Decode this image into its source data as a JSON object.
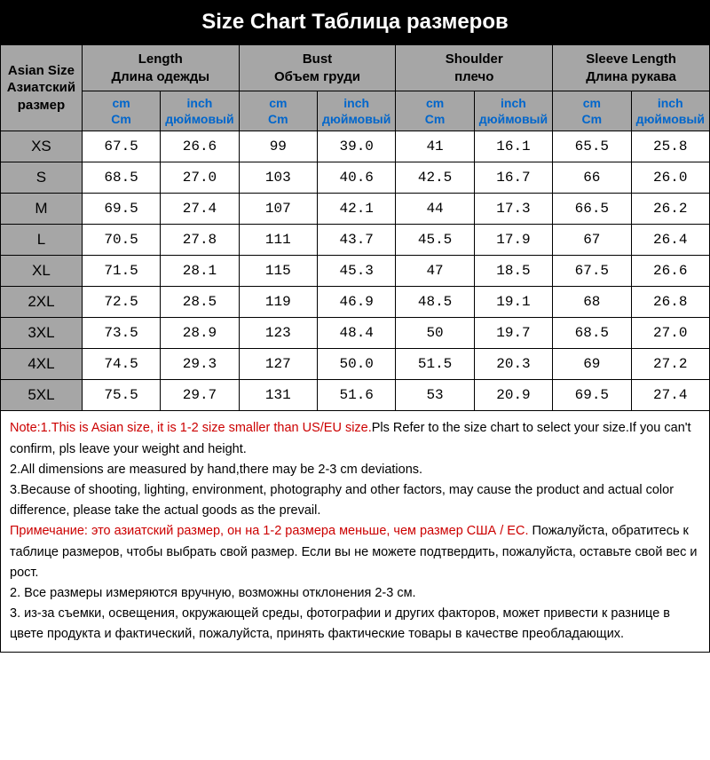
{
  "title": "Size Chart    Таблица размеров",
  "headers": {
    "asian_size": "Asian Size\nАзиатский\nразмер",
    "groups": [
      {
        "en": "Length",
        "ru": "Длина одежды"
      },
      {
        "en": "Bust",
        "ru": "Объем груди"
      },
      {
        "en": "Shoulder",
        "ru": "плечо"
      },
      {
        "en": "Sleeve Length",
        "ru": "Длина рукава"
      }
    ],
    "units": {
      "cm_en": "cm",
      "cm_ru": "Cm",
      "inch_en": "inch",
      "inch_ru": "дюймовый"
    }
  },
  "rows": [
    {
      "size": "XS",
      "v": [
        "67.5",
        "26.6",
        "99",
        "39.0",
        "41",
        "16.1",
        "65.5",
        "25.8"
      ]
    },
    {
      "size": "S",
      "v": [
        "68.5",
        "27.0",
        "103",
        "40.6",
        "42.5",
        "16.7",
        "66",
        "26.0"
      ]
    },
    {
      "size": "M",
      "v": [
        "69.5",
        "27.4",
        "107",
        "42.1",
        "44",
        "17.3",
        "66.5",
        "26.2"
      ]
    },
    {
      "size": "L",
      "v": [
        "70.5",
        "27.8",
        "111",
        "43.7",
        "45.5",
        "17.9",
        "67",
        "26.4"
      ]
    },
    {
      "size": "XL",
      "v": [
        "71.5",
        "28.1",
        "115",
        "45.3",
        "47",
        "18.5",
        "67.5",
        "26.6"
      ]
    },
    {
      "size": "2XL",
      "v": [
        "72.5",
        "28.5",
        "119",
        "46.9",
        "48.5",
        "19.1",
        "68",
        "26.8"
      ]
    },
    {
      "size": "3XL",
      "v": [
        "73.5",
        "28.9",
        "123",
        "48.4",
        "50",
        "19.7",
        "68.5",
        "27.0"
      ]
    },
    {
      "size": "4XL",
      "v": [
        "74.5",
        "29.3",
        "127",
        "50.0",
        "51.5",
        "20.3",
        "69",
        "27.2"
      ]
    },
    {
      "size": "5XL",
      "v": [
        "75.5",
        "29.7",
        "131",
        "51.6",
        "53",
        "20.9",
        "69.5",
        "27.4"
      ]
    }
  ],
  "notes": {
    "en_red_lead": "Note:1.This is Asian size, it is 1-2 size smaller than US/EU size.",
    "en_1_tail": "Pls Refer to the size chart to select your size.If you can't confirm, pls leave your weight and height.",
    "en_2": "2.All dimensions are measured by hand,there may be 2-3 cm deviations.",
    "en_3": "3.Because of shooting, lighting, environment, photography and other factors, may cause the product and actual color difference, please take the actual goods as the prevail.",
    "ru_red_lead": "Примечание: это азиатский размер, он на 1-2 размера меньше, чем размер США / ЕС.",
    "ru_1_tail": " Пожалуйста, обратитесь к таблице размеров, чтобы выбрать свой размер. Если вы не можете подтвердить, пожалуйста, оставьте свой вес и рост.",
    "ru_2": "2. Все размеры измеряются вручную, возможны отклонения 2-3 см.",
    "ru_3": "3. из-за съемки, освещения, окружающей среды, фотографии и других факторов, может привести к разнице в цвете продукта и фактический, пожалуйста, принять фактические товары в качестве преобладающих."
  },
  "colors": {
    "header_bg": "#000000",
    "header_text": "#ffffff",
    "cell_header_bg": "#a6a6a6",
    "unit_text": "#0066cc",
    "note_red": "#cc0000",
    "border": "#000000",
    "data_bg": "#ffffff"
  }
}
